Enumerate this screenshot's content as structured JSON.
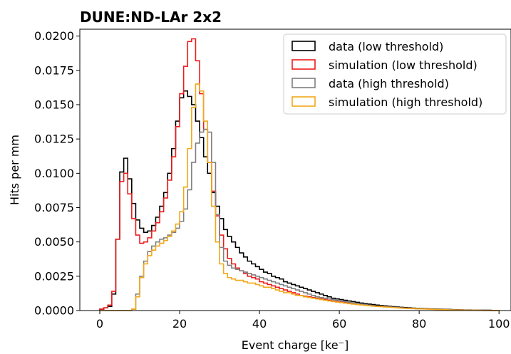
{
  "chart_data": {
    "type": "line",
    "title": "DUNE:ND-LAr 2x2",
    "xlabel": "Event charge [ke⁻]",
    "ylabel": "Hits per mm",
    "xlim": [
      -5,
      103
    ],
    "ylim": [
      0,
      0.0205
    ],
    "x_ticks": [
      "0",
      "20",
      "40",
      "60",
      "80",
      "100"
    ],
    "x_tick_values": [
      0,
      20,
      40,
      60,
      80,
      100
    ],
    "y_ticks": [
      "0.0000",
      "0.0025",
      "0.0050",
      "0.0075",
      "0.0100",
      "0.0125",
      "0.0150",
      "0.0175",
      "0.0200"
    ],
    "y_tick_values": [
      0,
      0.0025,
      0.005,
      0.0075,
      0.01,
      0.0125,
      0.015,
      0.0175,
      0.02
    ],
    "grid": false,
    "legend_position": "top-right",
    "bin_edges": [
      0,
      1,
      2,
      3,
      4,
      5,
      6,
      7,
      8,
      9,
      10,
      11,
      12,
      13,
      14,
      15,
      16,
      17,
      18,
      19,
      20,
      21,
      22,
      23,
      24,
      25,
      26,
      27,
      28,
      29,
      30,
      31,
      32,
      33,
      34,
      35,
      36,
      37,
      38,
      39,
      40,
      41,
      42,
      43,
      44,
      45,
      46,
      47,
      48,
      49,
      50,
      51,
      52,
      53,
      54,
      55,
      56,
      57,
      58,
      59,
      60,
      61,
      62,
      63,
      64,
      65,
      66,
      67,
      68,
      69,
      70,
      71,
      72,
      73,
      74,
      75,
      76,
      77,
      78,
      79,
      80,
      81,
      82,
      83,
      84,
      85,
      86,
      87,
      88,
      89,
      90,
      91,
      92,
      93,
      94,
      95,
      96,
      97,
      98,
      99,
      100
    ],
    "series": [
      {
        "name": "data (low threshold)",
        "color": "#000000",
        "values": [
          0.0001,
          0.0002,
          0.0003,
          0.0012,
          0.0052,
          0.0101,
          0.0111,
          0.0096,
          0.0078,
          0.0066,
          0.006,
          0.0057,
          0.0058,
          0.0062,
          0.0068,
          0.0076,
          0.0086,
          0.01,
          0.0118,
          0.0138,
          0.0155,
          0.016,
          0.0156,
          0.015,
          0.0138,
          0.0126,
          0.0112,
          0.01,
          0.0086,
          0.0076,
          0.0067,
          0.0059,
          0.0054,
          0.005,
          0.0046,
          0.0042,
          0.0039,
          0.0036,
          0.0034,
          0.0032,
          0.003,
          0.0028,
          0.0027,
          0.0025,
          0.0024,
          0.0023,
          0.0021,
          0.002,
          0.0019,
          0.0018,
          0.0017,
          0.0016,
          0.0015,
          0.0014,
          0.0013,
          0.0012,
          0.0011,
          0.001,
          0.0009,
          0.00085,
          0.0008,
          0.00075,
          0.0007,
          0.00065,
          0.0006,
          0.00055,
          0.0005,
          0.00047,
          0.00044,
          0.0004,
          0.00037,
          0.00034,
          0.00031,
          0.00028,
          0.00026,
          0.00024,
          0.00022,
          0.0002,
          0.00018,
          0.00016,
          0.00015,
          0.00014,
          0.00013,
          0.00012,
          0.00011,
          0.0001,
          9e-05,
          8e-05,
          7e-05,
          6e-05,
          5e-05,
          4e-05,
          4e-05,
          3e-05,
          3e-05,
          2e-05,
          2e-05,
          2e-05,
          1e-05,
          1e-05
        ]
      },
      {
        "name": "simulation (low threshold)",
        "color": "#ee1c1c",
        "values": [
          0.0001,
          0.0002,
          0.0004,
          0.0014,
          0.0052,
          0.0094,
          0.01,
          0.0085,
          0.0067,
          0.0055,
          0.0049,
          0.005,
          0.0053,
          0.0058,
          0.0064,
          0.0072,
          0.0082,
          0.0095,
          0.0112,
          0.0134,
          0.0158,
          0.0178,
          0.0196,
          0.0198,
          0.0182,
          0.0158,
          0.0132,
          0.0108,
          0.0087,
          0.0069,
          0.0055,
          0.0045,
          0.0038,
          0.0034,
          0.0031,
          0.0029,
          0.0027,
          0.0025,
          0.0024,
          0.0023,
          0.0021,
          0.002,
          0.0019,
          0.0018,
          0.0017,
          0.0016,
          0.0015,
          0.0014,
          0.0013,
          0.0012,
          0.0011,
          0.00105,
          0.001,
          0.00095,
          0.0009,
          0.00085,
          0.0008,
          0.00075,
          0.0007,
          0.00066,
          0.00062,
          0.00058,
          0.00054,
          0.0005,
          0.00047,
          0.00044,
          0.00041,
          0.00038,
          0.00035,
          0.00032,
          0.0003,
          0.00028,
          0.00026,
          0.00024,
          0.00022,
          0.0002,
          0.00018,
          0.00016,
          0.00015,
          0.00014,
          0.00013,
          0.00012,
          0.00011,
          0.0001,
          9e-05,
          8e-05,
          7e-05,
          6e-05,
          5e-05,
          4e-05,
          4e-05,
          3e-05,
          3e-05,
          2e-05,
          2e-05,
          2e-05,
          1e-05,
          1e-05,
          1e-05,
          1e-05
        ]
      },
      {
        "name": "data (high threshold)",
        "color": "#7f7f7f",
        "values": [
          0,
          0,
          0,
          0,
          0,
          0,
          0,
          0,
          0.0001,
          0.0012,
          0.0025,
          0.0036,
          0.0043,
          0.0047,
          0.005,
          0.0052,
          0.0053,
          0.0055,
          0.0057,
          0.006,
          0.0065,
          0.0074,
          0.0088,
          0.0108,
          0.0122,
          0.013,
          0.0132,
          0.013,
          0.0108,
          0.007,
          0.0046,
          0.0036,
          0.0033,
          0.0031,
          0.003,
          0.0029,
          0.0028,
          0.0027,
          0.0026,
          0.0025,
          0.0024,
          0.0023,
          0.0022,
          0.0021,
          0.002,
          0.0019,
          0.0018,
          0.0017,
          0.0016,
          0.0015,
          0.0014,
          0.0013,
          0.0012,
          0.0011,
          0.001,
          0.00095,
          0.0009,
          0.00085,
          0.0008,
          0.00075,
          0.0007,
          0.00065,
          0.0006,
          0.00055,
          0.0005,
          0.00046,
          0.00042,
          0.00038,
          0.00035,
          0.00032,
          0.0003,
          0.00028,
          0.00026,
          0.00024,
          0.00022,
          0.0002,
          0.00018,
          0.00016,
          0.00015,
          0.00014,
          0.00013,
          0.00012,
          0.00011,
          0.0001,
          9e-05,
          8e-05,
          7e-05,
          6e-05,
          5e-05,
          4e-05,
          4e-05,
          3e-05,
          3e-05,
          2e-05,
          2e-05,
          2e-05,
          1e-05,
          1e-05,
          1e-05,
          1e-05
        ]
      },
      {
        "name": "simulation (high threshold)",
        "color": "#f2a818",
        "values": [
          0,
          0,
          0,
          0,
          0,
          0,
          0,
          0,
          0.0001,
          0.001,
          0.0024,
          0.0034,
          0.004,
          0.0044,
          0.0047,
          0.0049,
          0.0051,
          0.0054,
          0.0058,
          0.0063,
          0.0072,
          0.009,
          0.0118,
          0.0148,
          0.0165,
          0.016,
          0.0138,
          0.0108,
          0.0076,
          0.005,
          0.0034,
          0.0027,
          0.0024,
          0.0023,
          0.0022,
          0.0022,
          0.0021,
          0.002,
          0.002,
          0.0019,
          0.0018,
          0.0017,
          0.0017,
          0.0016,
          0.0015,
          0.0014,
          0.0013,
          0.0013,
          0.0012,
          0.0011,
          0.0011,
          0.001,
          0.00095,
          0.0009,
          0.00085,
          0.0008,
          0.00075,
          0.0007,
          0.00066,
          0.00062,
          0.00058,
          0.00054,
          0.0005,
          0.00047,
          0.00044,
          0.00041,
          0.00038,
          0.00035,
          0.00032,
          0.0003,
          0.00028,
          0.00026,
          0.00024,
          0.00022,
          0.0002,
          0.00018,
          0.00016,
          0.00015,
          0.00014,
          0.00013,
          0.00012,
          0.00011,
          0.0001,
          9e-05,
          8e-05,
          7e-05,
          6e-05,
          5e-05,
          4e-05,
          4e-05,
          3e-05,
          3e-05,
          2e-05,
          2e-05,
          2e-05,
          1e-05,
          1e-05,
          1e-05,
          1e-05,
          1e-05
        ]
      }
    ]
  }
}
